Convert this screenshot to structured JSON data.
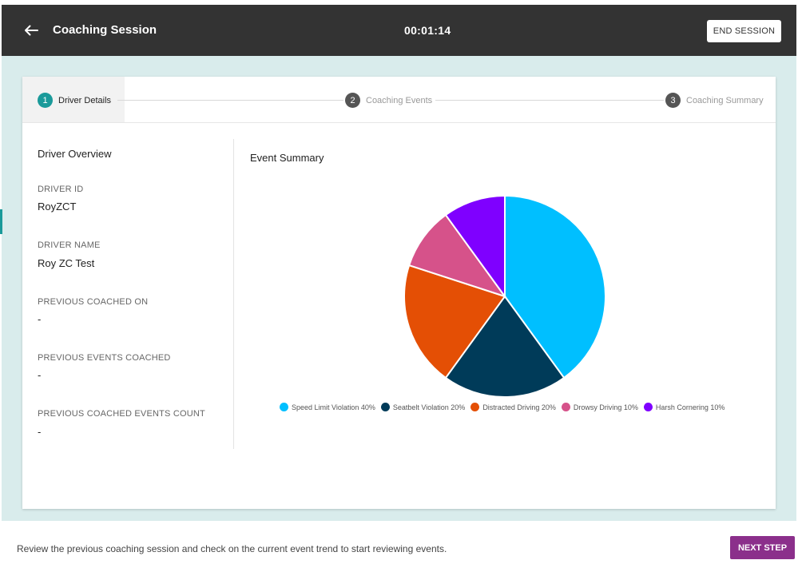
{
  "header": {
    "title": "Coaching Session",
    "timer": "00:01:14",
    "end_label": "END SESSION"
  },
  "stepper": {
    "steps": [
      {
        "number": "1",
        "label": "Driver Details",
        "active": true
      },
      {
        "number": "2",
        "label": "Coaching Events",
        "active": false
      },
      {
        "number": "3",
        "label": "Coaching Summary",
        "active": false
      }
    ]
  },
  "overview": {
    "title": "Driver Overview",
    "fields": [
      {
        "label": "DRIVER ID",
        "value": "RoyZCT"
      },
      {
        "label": "DRIVER NAME",
        "value": "Roy ZC Test"
      },
      {
        "label": "PREVIOUS COACHED ON",
        "value": "-"
      },
      {
        "label": "PREVIOUS EVENTS COACHED",
        "value": "-"
      },
      {
        "label": "PREVIOUS COACHED EVENTS COUNT",
        "value": "-"
      }
    ]
  },
  "event_summary": {
    "title": "Event Summary"
  },
  "chart_data": {
    "type": "pie",
    "title": "Event Summary",
    "categories": [
      "Speed Limit Violation",
      "Seatbelt Violation",
      "Distracted Driving",
      "Drowsy Driving",
      "Harsh Cornering"
    ],
    "values": [
      40,
      20,
      20,
      10,
      10
    ],
    "colors": [
      "#00bfff",
      "#003b59",
      "#e44f05",
      "#d6528a",
      "#7f00ff"
    ],
    "legend_labels": [
      "Speed Limit Violation 40%",
      "Seatbelt Violation 20%",
      "Distracted Driving 20%",
      "Drowsy Driving 10%",
      "Harsh Cornering 10%"
    ],
    "legend_position": "bottom"
  },
  "footer": {
    "text": "Review the previous coaching session and check on the current event trend to start reviewing events.",
    "next_label": "NEXT STEP"
  },
  "colors": {
    "header_bg": "#333333",
    "page_bg": "#d9ecec",
    "active_step": "#1a9a9a",
    "inactive_step": "#555555",
    "next_button": "#8b2f8b"
  },
  "icons": {
    "back": "arrow-left-icon"
  }
}
